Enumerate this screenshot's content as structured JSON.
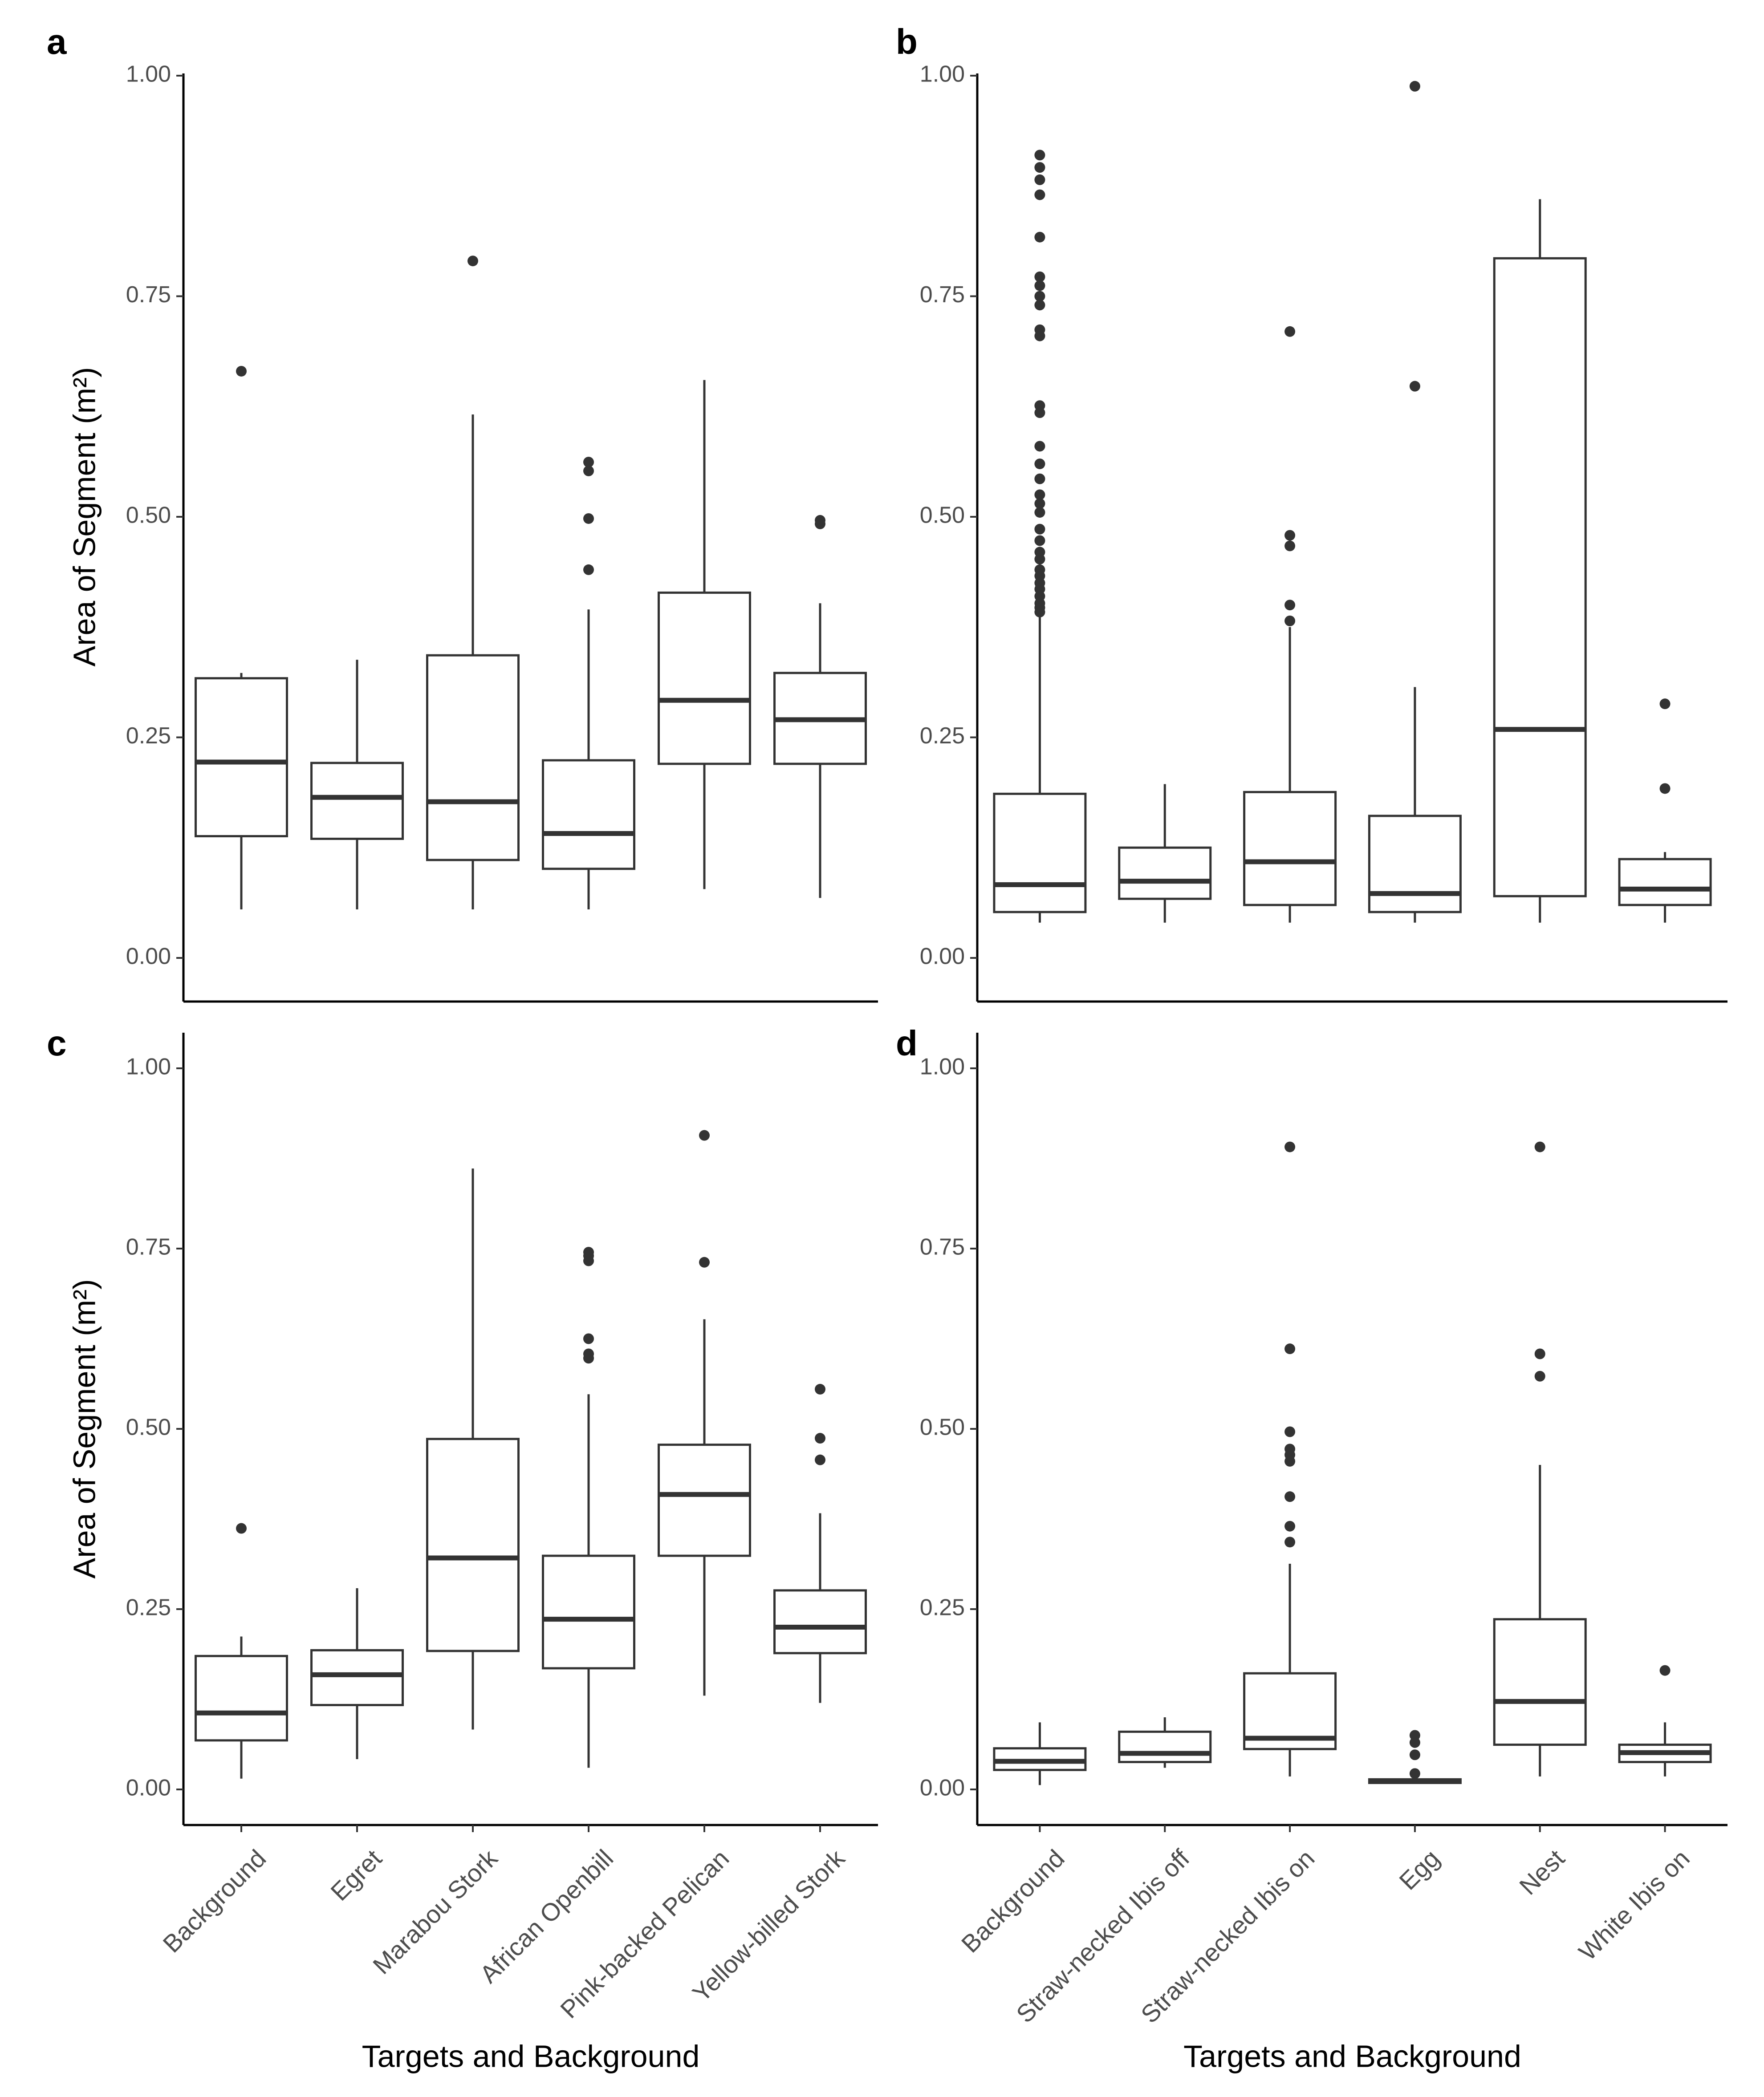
{
  "chart_data": [
    {
      "panel": "a",
      "type": "boxplot",
      "categories": [
        "Background",
        "Egret",
        "Marabou Stork",
        "African Openbill",
        "Pink-backed Pelican",
        "Yellow-billed Stork"
      ],
      "ylabel": "Area of Segment  (m²)",
      "xlabel": "",
      "ylim": [
        -0.05,
        1.05
      ],
      "yticks": [
        "0.00",
        "0.25",
        "0.50",
        "0.75",
        "1.00"
      ],
      "boxes": [
        {
          "min": 0.055,
          "q1": 0.138,
          "median": 0.222,
          "q3": 0.317,
          "max": 0.323,
          "outliers": [
            0.665
          ]
        },
        {
          "min": 0.055,
          "q1": 0.135,
          "median": 0.182,
          "q3": 0.221,
          "max": 0.338,
          "outliers": []
        },
        {
          "min": 0.055,
          "q1": 0.111,
          "median": 0.177,
          "q3": 0.343,
          "max": 0.616,
          "outliers": [
            0.79
          ]
        },
        {
          "min": 0.055,
          "q1": 0.101,
          "median": 0.141,
          "q3": 0.224,
          "max": 0.395,
          "outliers": [
            0.44,
            0.498,
            0.552,
            0.562
          ]
        },
        {
          "min": 0.078,
          "q1": 0.22,
          "median": 0.292,
          "q3": 0.414,
          "max": 0.655,
          "outliers": []
        },
        {
          "min": 0.068,
          "q1": 0.22,
          "median": 0.27,
          "q3": 0.323,
          "max": 0.402,
          "outliers": [
            0.492,
            0.496
          ]
        }
      ]
    },
    {
      "panel": "b",
      "type": "boxplot",
      "categories": [
        "Background",
        "Straw-necked Ibis off",
        "Straw-necked Ibis on",
        "Egg",
        "Nest",
        "White Ibis on"
      ],
      "ylabel": "",
      "xlabel": "",
      "ylim": [
        -0.05,
        1.05
      ],
      "yticks": [
        "0.00",
        "0.25",
        "0.50",
        "0.75",
        "1.00"
      ],
      "boxes": [
        {
          "min": 0.04,
          "q1": 0.052,
          "median": 0.083,
          "q3": 0.186,
          "max": 0.388,
          "outliers": [
            0.392,
            0.397,
            0.402,
            0.41,
            0.418,
            0.425,
            0.433,
            0.44,
            0.452,
            0.46,
            0.473,
            0.486,
            0.505,
            0.515,
            0.525,
            0.543,
            0.56,
            0.58,
            0.618,
            0.626,
            0.705,
            0.712,
            0.74,
            0.75,
            0.762,
            0.772,
            0.817,
            0.865,
            0.882,
            0.896,
            0.91
          ]
        },
        {
          "min": 0.04,
          "q1": 0.067,
          "median": 0.087,
          "q3": 0.125,
          "max": 0.197,
          "outliers": []
        },
        {
          "min": 0.04,
          "q1": 0.06,
          "median": 0.109,
          "q3": 0.188,
          "max": 0.375,
          "outliers": [
            0.382,
            0.4,
            0.467,
            0.479,
            0.71
          ]
        },
        {
          "min": 0.04,
          "q1": 0.052,
          "median": 0.073,
          "q3": 0.161,
          "max": 0.307,
          "outliers": [
            0.648,
            0.988
          ]
        },
        {
          "min": 0.04,
          "q1": 0.07,
          "median": 0.259,
          "q3": 0.793,
          "max": 0.86,
          "outliers": []
        },
        {
          "min": 0.04,
          "q1": 0.06,
          "median": 0.078,
          "q3": 0.112,
          "max": 0.12,
          "outliers": [
            0.192,
            0.288
          ]
        }
      ]
    },
    {
      "panel": "c",
      "type": "boxplot",
      "categories": [
        "Background",
        "Egret",
        "Marabou Stork",
        "African Openbill",
        "Pink-backed Pelican",
        "Yellow-billed Stork"
      ],
      "ylabel": "Area of Segment  (m²)",
      "xlabel": "Targets and Background",
      "ylim": [
        -0.05,
        1.05
      ],
      "yticks": [
        "0.00",
        "0.25",
        "0.50",
        "0.75",
        "1.00"
      ],
      "boxes": [
        {
          "min": 0.015,
          "q1": 0.068,
          "median": 0.106,
          "q3": 0.185,
          "max": 0.212,
          "outliers": [
            0.362
          ]
        },
        {
          "min": 0.042,
          "q1": 0.117,
          "median": 0.159,
          "q3": 0.193,
          "max": 0.279,
          "outliers": []
        },
        {
          "min": 0.083,
          "q1": 0.192,
          "median": 0.321,
          "q3": 0.486,
          "max": 0.861,
          "outliers": []
        },
        {
          "min": 0.03,
          "q1": 0.168,
          "median": 0.236,
          "q3": 0.324,
          "max": 0.548,
          "outliers": [
            0.598,
            0.604,
            0.625,
            0.733,
            0.74,
            0.745
          ]
        },
        {
          "min": 0.13,
          "q1": 0.324,
          "median": 0.409,
          "q3": 0.478,
          "max": 0.652,
          "outliers": [
            0.731,
            0.907
          ]
        },
        {
          "min": 0.12,
          "q1": 0.189,
          "median": 0.225,
          "q3": 0.276,
          "max": 0.383,
          "outliers": [
            0.457,
            0.487,
            0.555
          ]
        }
      ]
    },
    {
      "panel": "d",
      "type": "boxplot",
      "categories": [
        "Background",
        "Straw-necked Ibis off",
        "Straw-necked Ibis on",
        "Egg",
        "Nest",
        "White Ibis on"
      ],
      "ylabel": "",
      "xlabel": "Targets and Background",
      "ylim": [
        -0.05,
        1.05
      ],
      "yticks": [
        "0.00",
        "0.25",
        "0.50",
        "0.75",
        "1.00"
      ],
      "boxes": [
        {
          "min": 0.006,
          "q1": 0.027,
          "median": 0.039,
          "q3": 0.057,
          "max": 0.093,
          "outliers": []
        },
        {
          "min": 0.03,
          "q1": 0.038,
          "median": 0.05,
          "q3": 0.08,
          "max": 0.1,
          "outliers": []
        },
        {
          "min": 0.018,
          "q1": 0.056,
          "median": 0.071,
          "q3": 0.161,
          "max": 0.313,
          "outliers": [
            0.343,
            0.365,
            0.406,
            0.455,
            0.464,
            0.472,
            0.496,
            0.611,
            0.891
          ]
        },
        {
          "min": 0.008,
          "q1": 0.009,
          "median": 0.012,
          "q3": 0.014,
          "max": 0.016,
          "outliers": [
            0.022,
            0.048,
            0.065,
            0.075
          ]
        },
        {
          "min": 0.018,
          "q1": 0.062,
          "median": 0.122,
          "q3": 0.236,
          "max": 0.45,
          "outliers": [
            0.573,
            0.604,
            0.891
          ]
        },
        {
          "min": 0.018,
          "q1": 0.038,
          "median": 0.051,
          "q3": 0.062,
          "max": 0.093,
          "outliers": [
            0.165
          ]
        }
      ]
    }
  ]
}
